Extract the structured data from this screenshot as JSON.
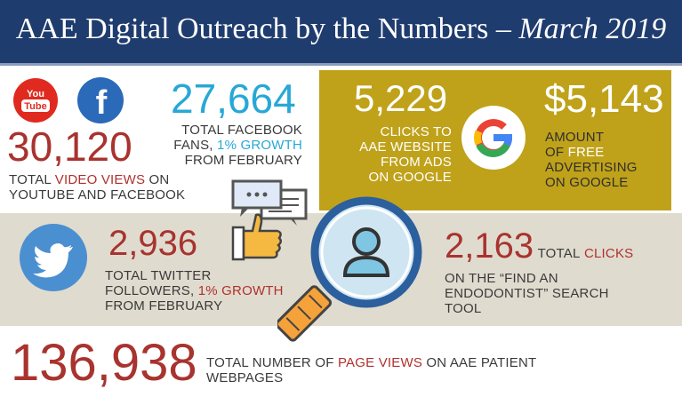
{
  "header": {
    "title_main": "AAE Digital Outreach by the Numbers –",
    "title_date": "March 2019"
  },
  "youtube": {
    "icon": "youtube-logo",
    "logo_line1": "You",
    "logo_line2": "Tube",
    "brand_color": "#e02a20"
  },
  "facebook_icon": {
    "icon": "facebook-logo",
    "glyph": "f",
    "brand_color": "#2b6ab8"
  },
  "video_views": {
    "value": "30,120",
    "caption_pre": "TOTAL",
    "caption_accent": "VIDEO VIEWS",
    "caption_post": "ON",
    "caption_line2": "YOUTUBE AND FACEBOOK"
  },
  "facebook_fans": {
    "value": "27,664",
    "caption_line1": "TOTAL FACEBOOK",
    "caption_pre": "FANS,",
    "caption_accent": "1% GROWTH",
    "caption_line3": "FROM FEBRUARY"
  },
  "ad_clicks": {
    "value": "5,229",
    "caption_line1": "CLICKS TO",
    "caption_line2": "AAE WEBSITE",
    "caption_line3": "FROM ADS",
    "caption_line4": "ON GOOGLE"
  },
  "google_icon": {
    "icon": "google-logo",
    "glyph": "G"
  },
  "free_advertising": {
    "value": "$5,143",
    "caption_line1": "AMOUNT",
    "caption_pre": "OF",
    "caption_accent": "FREE",
    "caption_line3": "ADVERTISING",
    "caption_line4": "ON GOOGLE"
  },
  "twitter": {
    "icon": "twitter-bird",
    "brand_color": "#4a8fd0",
    "value": "2,936",
    "caption_line1": "TOTAL TWITTER",
    "caption_pre": "FOLLOWERS,",
    "caption_accent": "1% GROWTH",
    "caption_line3": "FROM FEBRUARY"
  },
  "search_tool": {
    "value": "2,163",
    "caption_pre": "TOTAL",
    "caption_accent": "CLICKS",
    "caption_line2": "ON THE “FIND AN",
    "caption_line3": "ENDODONTIST” SEARCH",
    "caption_line4": "TOOL"
  },
  "page_views": {
    "value": "136,938",
    "caption_pre": "TOTAL NUMBER OF",
    "caption_accent": "PAGE VIEWS",
    "caption_post": "ON AAE PATIENT",
    "caption_line2": "WEBPAGES"
  },
  "decor": {
    "chat_icon": "chat-bubbles-icon",
    "thumb_icon": "thumbs-up-icon",
    "magnifier_icon": "magnifying-glass-user-icon"
  }
}
